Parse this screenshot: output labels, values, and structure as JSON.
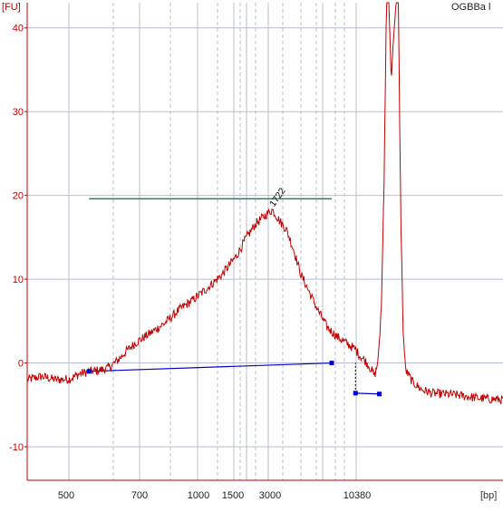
{
  "chart_data": {
    "type": "line",
    "title": "OGBBa l",
    "ylabel": "[FU]",
    "xlabel": "[bp]",
    "ylim": [
      -14,
      43
    ],
    "y_ticks": [
      -10,
      0,
      10,
      20,
      30,
      40
    ],
    "x_tick_labels": [
      "500",
      "700",
      "1000",
      "1500",
      "3000",
      "10380"
    ],
    "peak_annotation": "1722",
    "grid": true,
    "colors": {
      "trace": "#c00000",
      "axis": "#c00000",
      "baseline": "#0000cc",
      "marker": "#0000cc",
      "region": "#2e7d5b",
      "grid": "#b8bed0"
    },
    "series": [
      {
        "values": [
          [
            0.0,
            -2.0
          ],
          [
            0.03,
            -1.6
          ],
          [
            0.06,
            -2.0
          ],
          [
            0.09,
            -1.9
          ],
          [
            0.11,
            -1.3
          ],
          [
            0.13,
            -1.0
          ],
          [
            0.15,
            -0.9
          ],
          [
            0.17,
            -0.6
          ],
          [
            0.19,
            0.3
          ],
          [
            0.21,
            1.5
          ],
          [
            0.23,
            2.5
          ],
          [
            0.26,
            3.6
          ],
          [
            0.29,
            4.8
          ],
          [
            0.32,
            6.4
          ],
          [
            0.35,
            7.6
          ],
          [
            0.38,
            9.0
          ],
          [
            0.41,
            10.6
          ],
          [
            0.44,
            12.8
          ],
          [
            0.46,
            14.9
          ],
          [
            0.48,
            16.6
          ],
          [
            0.5,
            17.6
          ],
          [
            0.515,
            18.3
          ],
          [
            0.53,
            17.0
          ],
          [
            0.545,
            15.9
          ],
          [
            0.56,
            13.5
          ],
          [
            0.575,
            10.6
          ],
          [
            0.59,
            8.8
          ],
          [
            0.61,
            6.4
          ],
          [
            0.63,
            4.3
          ],
          [
            0.65,
            3.2
          ],
          [
            0.67,
            2.4
          ],
          [
            0.69,
            1.6
          ],
          [
            0.7,
            0.8
          ],
          [
            0.71,
            0.3
          ],
          [
            0.72,
            -0.5
          ],
          [
            0.73,
            -1.5
          ],
          [
            0.735,
            -0.5
          ],
          [
            0.74,
            2.0
          ],
          [
            0.745,
            8.0
          ],
          [
            0.75,
            22.0
          ],
          [
            0.755,
            43.0
          ],
          [
            0.76,
            43.0
          ],
          [
            0.765,
            34.0
          ],
          [
            0.775,
            43.0
          ],
          [
            0.78,
            43.0
          ],
          [
            0.785,
            18.0
          ],
          [
            0.79,
            4.0
          ],
          [
            0.795,
            -0.8
          ],
          [
            0.81,
            -2.3
          ],
          [
            0.83,
            -3.2
          ],
          [
            0.85,
            -3.6
          ],
          [
            0.9,
            -3.8
          ],
          [
            0.95,
            -4.2
          ],
          [
            1.0,
            -4.4
          ]
        ]
      }
    ],
    "baseline_points": [
      [
        0.13,
        -1.0
      ],
      [
        0.64,
        0.0
      ]
    ],
    "marker_points": [
      [
        0.13,
        -1.0
      ],
      [
        0.64,
        0.0
      ],
      [
        0.69,
        -3.6
      ],
      [
        0.74,
        -3.7
      ]
    ],
    "region": {
      "x": [
        0.13,
        0.64
      ],
      "y": 19.6
    }
  }
}
